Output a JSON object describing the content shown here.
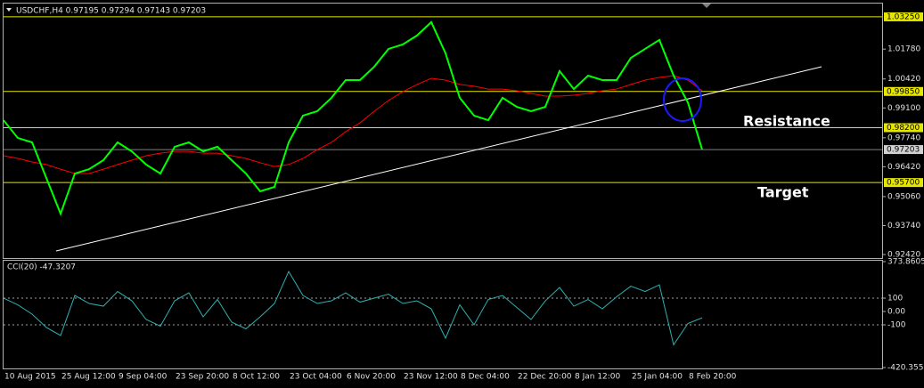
{
  "chart_data": [
    {
      "type": "line",
      "title": "USDCHF,H4  0.97195 0.97294 0.97143 0.97203",
      "series": [
        {
          "color": "#00ff00",
          "values": [
            0.9854,
            0.9773,
            0.9753,
            0.9591,
            0.9428,
            0.9611,
            0.9631,
            0.9672,
            0.9753,
            0.9712,
            0.9652,
            0.9611,
            0.9733,
            0.9753,
            0.9712,
            0.9733,
            0.9672,
            0.9611,
            0.953,
            0.955,
            0.9753,
            0.9875,
            0.9895,
            0.9956,
            1.0037,
            1.0037,
            1.0098,
            1.0179,
            1.0199,
            1.024,
            1.0301,
            1.0159,
            0.9956,
            0.9875,
            0.9854,
            0.9956,
            0.9915,
            0.9895,
            0.9915,
            1.0078,
            0.9996,
            1.0057,
            1.0037,
            1.0037,
            1.0138,
            1.0179,
            1.022,
            1.0057,
            0.9935,
            0.972,
            null,
            null,
            null,
            null,
            null,
            null,
            null,
            null,
            null,
            null,
            null,
            null
          ]
        },
        {
          "color": "#ff0000",
          "values": [
            0.9692,
            0.968,
            0.9664,
            0.9652,
            0.9631,
            0.9611,
            0.9611,
            0.9631,
            0.9652,
            0.9672,
            0.9692,
            0.9704,
            0.9712,
            0.9712,
            0.9704,
            0.9704,
            0.9692,
            0.968,
            0.966,
            0.9643,
            0.9652,
            0.968,
            0.972,
            0.9753,
            0.9802,
            0.9842,
            0.9895,
            0.9944,
            0.9984,
            1.0017,
            1.0045,
            1.0037,
            1.0017,
            1.0009,
            0.9996,
            0.9996,
            0.9988,
            0.9976,
            0.9964,
            0.9964,
            0.9968,
            0.9976,
            0.9988,
            0.9996,
            1.0017,
            1.0037,
            1.0049,
            1.0057,
            1.0037,
            0.9988,
            null,
            null,
            null,
            null,
            null,
            null,
            null,
            null,
            null,
            null,
            null,
            null
          ]
        }
      ],
      "hlines": [
        {
          "value": 1.0325,
          "label": "1.03250"
        },
        {
          "value": 0.9985,
          "label": "0.99850"
        },
        {
          "value": 0.982,
          "label": "0.98200"
        },
        {
          "value": 0.957,
          "label": "0.95700"
        }
      ],
      "hline_color": "#e6e600",
      "price_line": 0.97203,
      "ylim": [
        0.9234,
        1.0345
      ],
      "yticks": [
        {
          "value": 1.0178,
          "label": "1.01780"
        },
        {
          "value": 1.0042,
          "label": "1.00420"
        },
        {
          "value": 0.991,
          "label": "0.99100"
        },
        {
          "value": 0.9774,
          "label": "0.97740"
        },
        {
          "value": 0.9642,
          "label": "0.96420"
        },
        {
          "value": 0.9506,
          "label": "0.95060"
        },
        {
          "value": 0.9374,
          "label": "0.93740"
        },
        {
          "value": 0.9242,
          "label": "0.92420"
        }
      ],
      "annotations": [
        "Resistance",
        "Target"
      ]
    },
    {
      "type": "line",
      "title": "CCI(20) -47.3207",
      "color": "#30b0b0",
      "categories": [
        "10 Aug 2015",
        null,
        null,
        null,
        "25 Aug 12:00",
        null,
        null,
        null,
        "9 Sep 04:00",
        null,
        null,
        null,
        "23 Sep 20:00",
        null,
        null,
        null,
        "8 Oct 12:00",
        null,
        null,
        null,
        "23 Oct 04:00",
        null,
        null,
        null,
        "6 Nov 20:00",
        null,
        null,
        null,
        "23 Nov 12:00",
        null,
        null,
        null,
        "8 Dec 04:00",
        null,
        null,
        null,
        "22 Dec 20:00",
        null,
        null,
        null,
        "8 Jan 12:00",
        null,
        null,
        null,
        "25 Jan 04:00",
        null,
        null,
        null,
        "8 Feb 20:00",
        null,
        null,
        null,
        null,
        null,
        null,
        null,
        null,
        null,
        null,
        null,
        null,
        null
      ],
      "values": [
        100,
        50,
        -20,
        -120,
        -180,
        120,
        60,
        40,
        150,
        80,
        -60,
        -110,
        80,
        140,
        -40,
        90,
        -80,
        -130,
        -40,
        60,
        300,
        120,
        60,
        80,
        140,
        70,
        100,
        130,
        60,
        80,
        20,
        -200,
        50,
        -100,
        90,
        120,
        30,
        -60,
        80,
        180,
        40,
        90,
        20,
        110,
        190,
        150,
        200,
        -250,
        -90,
        -47.3207,
        null,
        null,
        null,
        null,
        null,
        null,
        null,
        null,
        null,
        null,
        null,
        null
      ],
      "ylim": [
        -420.3556,
        373.8605
      ],
      "yticks": [
        373.8605,
        100,
        {
          "value": 0,
          "label": "0.00"
        },
        -100,
        -420.3556
      ],
      "levels": [
        100,
        -100
      ]
    }
  ]
}
